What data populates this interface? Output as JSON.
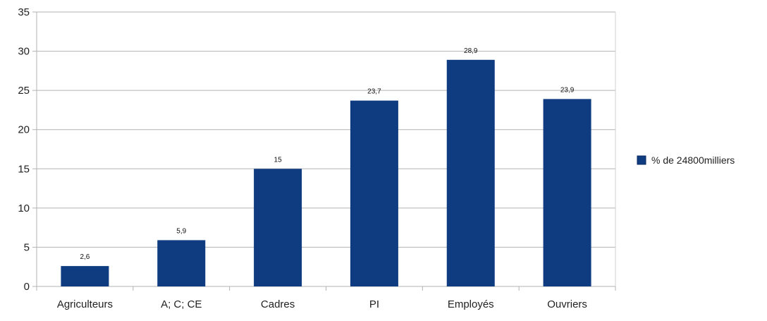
{
  "chart_data": {
    "type": "bar",
    "title": "",
    "xlabel": "",
    "ylabel": "",
    "categories": [
      "Agriculteurs",
      "A; C; CE",
      "Cadres",
      "PI",
      "Employés",
      "Ouvriers"
    ],
    "series": [
      {
        "name": "% de 24800milliers",
        "values": [
          2.6,
          5.9,
          15,
          23.7,
          28.9,
          23.9
        ],
        "value_labels": [
          "2,6",
          "5,9",
          "15",
          "23,7",
          "28,9",
          "23,9"
        ],
        "color": "#0f3b80"
      }
    ],
    "ylim": [
      0,
      35
    ],
    "yticks": [
      0,
      5,
      10,
      15,
      20,
      25,
      30,
      35
    ],
    "grid": true,
    "legend_position": "right"
  }
}
